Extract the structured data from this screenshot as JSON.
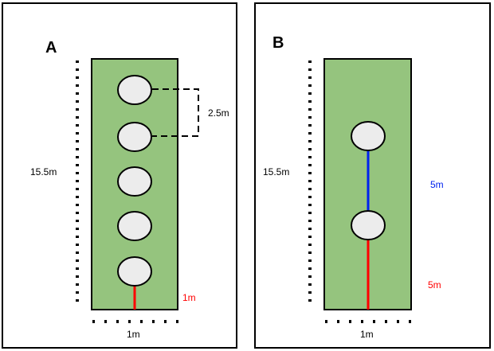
{
  "colors": {
    "plot_fill": "#95c47e",
    "circle_fill": "#ececec",
    "red": "#ff0000",
    "blue": "#0022ee",
    "outline": "#000000"
  },
  "panel_a": {
    "title": "A",
    "height_label": "15.5m",
    "width_label": "1m",
    "spacing_label": "2.5m",
    "edge_label": "1m"
  },
  "panel_b": {
    "title": "B",
    "height_label": "15.5m",
    "between_label": "5m",
    "edge_label": "5m",
    "width_label": "1m"
  }
}
